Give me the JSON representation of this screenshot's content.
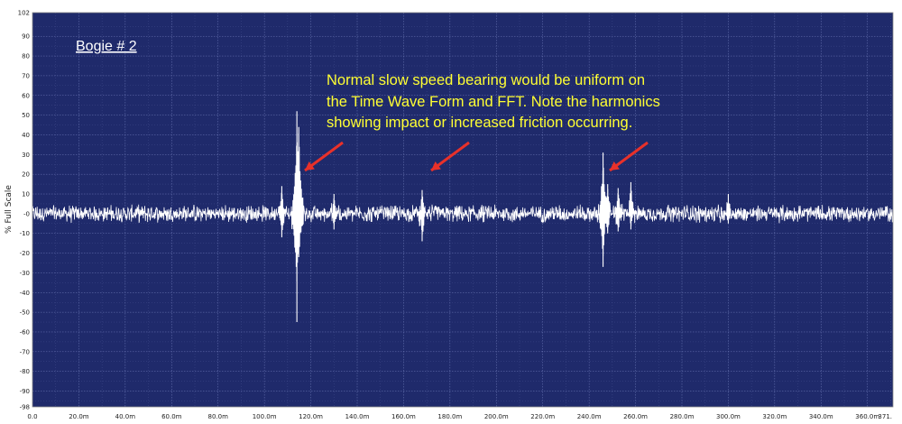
{
  "chart_data": {
    "type": "line",
    "title": "",
    "ylabel": "% Full Scale",
    "xlabel": "",
    "xlim": [
      0,
      371
    ],
    "ylim": [
      -98,
      102
    ],
    "grid": true,
    "yticks": [
      102,
      90,
      80,
      70,
      60,
      50,
      40,
      30,
      20,
      10,
      0,
      -10,
      -20,
      -30,
      -40,
      -50,
      -60,
      -70,
      -80,
      -90,
      -98
    ],
    "ytick_labels": [
      "102",
      "90",
      "80",
      "70",
      "60",
      "50",
      "40",
      "30",
      "20",
      "10",
      "-0",
      "-10",
      "-20",
      "-30",
      "-40",
      "-50",
      "-60",
      "-70",
      "-80",
      "-90",
      "-98"
    ],
    "xticks": [
      0,
      20,
      40,
      60,
      80,
      100,
      120,
      140,
      160,
      180,
      200,
      220,
      240,
      260,
      280,
      300,
      320,
      340,
      360,
      371
    ],
    "xtick_labels": [
      "0.0",
      "20.0m",
      "40.0m",
      "60.0m",
      "80.0m",
      "100.0m",
      "120.0m",
      "140.0m",
      "160.0m",
      "180.0m",
      "200.0m",
      "220.0m",
      "240.0m",
      "260.0m",
      "280.0m",
      "300.0m",
      "320.0m",
      "340.0m",
      "360.0m",
      "371."
    ],
    "series": [
      {
        "baseline_amplitude": 5,
        "color": "#ffffff",
        "impacts": [
          {
            "x": 114.0,
            "max": 52,
            "min": -55
          },
          {
            "x": 114.8,
            "max": 44,
            "min": -22
          },
          {
            "x": 107.5,
            "max": 14,
            "min": -12
          },
          {
            "x": 130.0,
            "max": 10,
            "min": -8
          },
          {
            "x": 168.0,
            "max": 12,
            "min": -14
          },
          {
            "x": 246.0,
            "max": 31,
            "min": -27
          },
          {
            "x": 248.0,
            "max": 15,
            "min": -10
          },
          {
            "x": 252.5,
            "max": 13,
            "min": -9
          },
          {
            "x": 258.0,
            "max": 16,
            "min": -8
          },
          {
            "x": 300.0,
            "max": 10,
            "min": -5
          }
        ]
      }
    ]
  },
  "annotations": {
    "bogie_label": "Bogie # 2",
    "note_lines": [
      "Normal slow speed bearing would be uniform on",
      "the Time Wave Form and FFT.  Note the harmonics",
      "showing impact or increased friction occurring."
    ],
    "arrow_color": "#e8312a",
    "note_color": "#ffff33"
  },
  "colors": {
    "plot_background": "#1f2a6b",
    "grid": "#6f7ab8",
    "trace": "#ffffff"
  }
}
